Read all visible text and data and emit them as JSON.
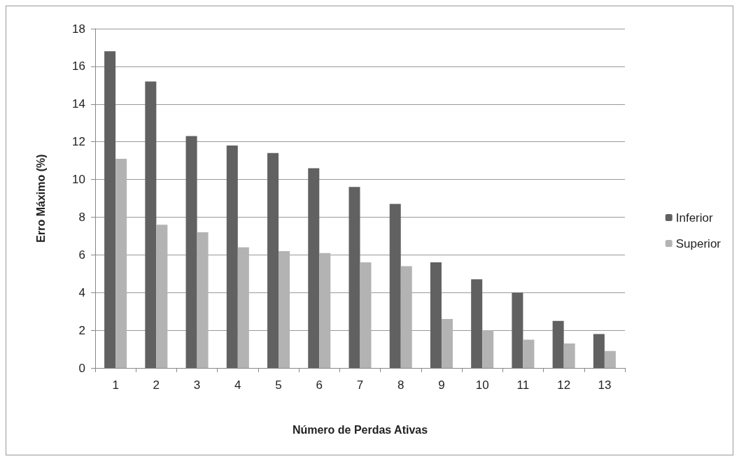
{
  "chart_data": {
    "type": "bar",
    "xlabel": "Número de Perdas Ativas",
    "ylabel": "Erro Máximo (%)",
    "categories": [
      "1",
      "2",
      "3",
      "4",
      "5",
      "6",
      "7",
      "8",
      "9",
      "10",
      "11",
      "12",
      "13"
    ],
    "series": [
      {
        "name": "Inferior",
        "color": "#616161",
        "values": [
          16.8,
          15.2,
          12.3,
          11.8,
          11.4,
          10.6,
          9.6,
          8.7,
          5.6,
          4.7,
          4.0,
          2.5,
          1.8
        ]
      },
      {
        "name": "Superior",
        "color": "#b3b3b3",
        "values": [
          11.1,
          7.6,
          7.2,
          6.4,
          6.2,
          6.1,
          5.6,
          5.4,
          2.6,
          2.0,
          1.5,
          1.3,
          0.9
        ]
      }
    ],
    "ylim": [
      0,
      18
    ],
    "yticks": [
      0,
      2,
      4,
      6,
      8,
      10,
      12,
      14,
      16,
      18
    ],
    "grid": "y",
    "legend": "right"
  }
}
